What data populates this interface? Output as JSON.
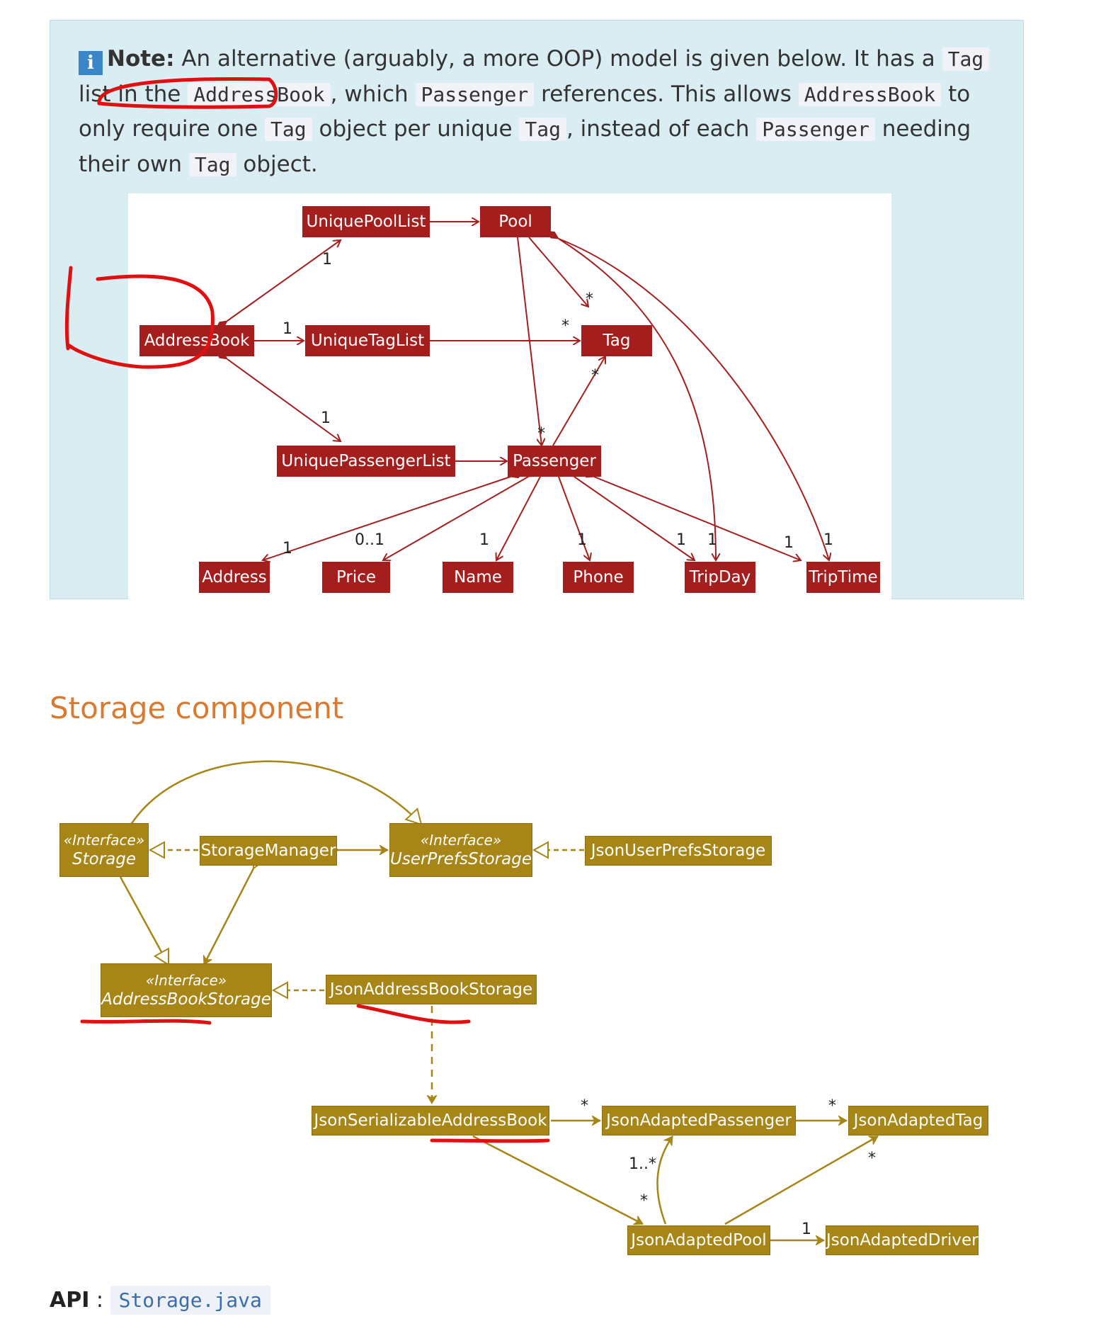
{
  "note": {
    "label": "Note:",
    "t1": "An alternative (arguably, a more OOP) model is given below. It has a",
    "c_tag1": "Tag",
    "t2": "list in the",
    "c_ab1": "AddressBook",
    "t3": ", which",
    "c_pass1": "Passenger",
    "t4": "references. This allows",
    "c_ab2": "AddressBook",
    "t5": "to only require one",
    "c_tag2": "Tag",
    "t6": "object per unique",
    "c_tag3": "Tag",
    "t7": ", instead of each",
    "c_pass2": "Passenger",
    "t8": "needing their own",
    "c_tag4": "Tag",
    "t9": "object."
  },
  "model_diagram": {
    "classes": {
      "unique_pool_list": "UniquePoolList",
      "pool": "Pool",
      "address_book": "AddressBook",
      "unique_tag_list": "UniqueTagList",
      "tag": "Tag",
      "unique_passenger_list": "UniquePassengerList",
      "passenger": "Passenger",
      "address": "Address",
      "price": "Price",
      "name": "Name",
      "phone": "Phone",
      "trip_day": "TripDay",
      "trip_time": "TripTime"
    },
    "multiplicities": {
      "ab_upl": "1",
      "ab_utl": "1",
      "ab_upsl": "1",
      "pool_tag": "*",
      "utl_tag": "*",
      "pass_tag": "*",
      "pool_pass": "*",
      "address": "1",
      "price": "0..1",
      "name": "1",
      "phone": "1",
      "tripday_a": "1",
      "tripday_b": "1",
      "triptime_a": "1",
      "triptime_b": "1"
    }
  },
  "section_heading": "Storage component",
  "storage_diagram": {
    "stereotype": "«Interface»",
    "classes": {
      "storage": "Storage",
      "storage_manager": "StorageManager",
      "user_prefs_storage": "UserPrefsStorage",
      "json_user_prefs_storage": "JsonUserPrefsStorage",
      "address_book_storage": "AddressBookStorage",
      "json_address_book_storage": "JsonAddressBookStorage",
      "json_serializable_address_book": "JsonSerializableAddressBook",
      "json_adapted_passenger": "JsonAdaptedPassenger",
      "json_adapted_tag": "JsonAdaptedTag",
      "json_adapted_pool": "JsonAdaptedPool",
      "json_adapted_driver": "JsonAdaptedDriver"
    },
    "multiplicities": {
      "jsab_passenger": "*",
      "passenger_tag": "*",
      "pool_passenger": "1..*",
      "jsab_pool": "*",
      "pool_tag": "*",
      "pool_driver": "1"
    }
  },
  "api": {
    "label": "API",
    "separator": " : ",
    "file": "Storage.java"
  },
  "colors": {
    "model_class": "#a51e1e",
    "storage_class": "#a78517",
    "note_bg": "#d9edf2",
    "heading": "#d97a30",
    "annotation": "#e01010"
  }
}
